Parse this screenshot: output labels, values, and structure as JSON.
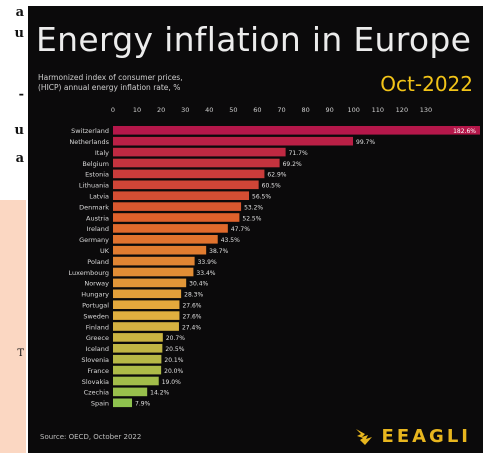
{
  "side_fragments": [
    "a",
    "u",
    "-",
    "u",
    "a",
    "T"
  ],
  "chart": {
    "title": "Energy inflation in Europe",
    "subtitle": "Harmonized index of consumer prices,\n(HICP) annual energy inflation rate, %",
    "date": "Oct-2022",
    "source": "Source: OECD, October 2022",
    "brand": "EEAGLI"
  },
  "colors": {
    "bar_top": "#b5174a",
    "bar_mid": "#e0642a",
    "bar_low": "#e3ae3e",
    "bar_end": "#8ec24e",
    "accent": "#f2c418"
  },
  "chart_data": {
    "type": "bar",
    "orientation": "horizontal",
    "categories": [
      "Switzerland",
      "Netherlands",
      "Italy",
      "Belgium",
      "Estonia",
      "Lithuania",
      "Latvia",
      "Denmark",
      "Austria",
      "Ireland",
      "Germany",
      "UK",
      "Poland",
      "Luxembourg",
      "Norway",
      "Hungary",
      "Portugal",
      "Sweden",
      "Finland",
      "Greece",
      "Iceland",
      "Slovenia",
      "France",
      "Slovakia",
      "Czechia",
      "Spain"
    ],
    "values": [
      182.6,
      99.7,
      71.7,
      69.2,
      62.9,
      60.5,
      56.5,
      53.2,
      52.5,
      47.7,
      43.5,
      38.7,
      33.9,
      33.4,
      30.4,
      28.3,
      27.6,
      27.6,
      27.4,
      20.7,
      20.5,
      20.1,
      20.0,
      19.0,
      14.2,
      7.9
    ],
    "value_labels": [
      "182.6%",
      "99.7%",
      "71.7%",
      "69.2%",
      "62.9%",
      "60.5%",
      "56.5%",
      "53.2%",
      "52.5%",
      "47.7%",
      "43.5%",
      "38.7%",
      "33.9%",
      "33.4%",
      "30.4%",
      "28.3%",
      "27.6%",
      "27.6%",
      "27.4%",
      "20.7%",
      "20.5%",
      "20.1%",
      "20.0%",
      "19.0%",
      "14.2%",
      "7.9%"
    ],
    "x_ticks": [
      "0",
      "10",
      "20",
      "30",
      "40",
      "50",
      "60",
      "70",
      "80",
      "90",
      "100",
      "110",
      "120",
      "130"
    ],
    "xlim": [
      0,
      135
    ],
    "title": "Energy inflation in Europe",
    "xlabel": "",
    "ylabel": ""
  }
}
